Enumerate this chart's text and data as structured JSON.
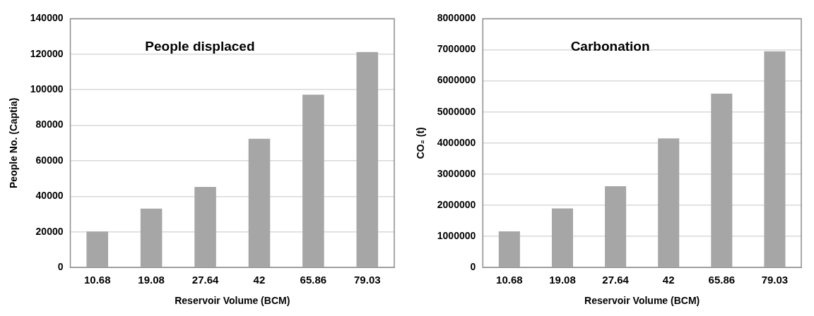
{
  "chart_data": [
    {
      "type": "bar",
      "title": "People displaced",
      "categories": [
        "10.68",
        "19.08",
        "27.64",
        "42",
        "65.86",
        "79.03"
      ],
      "values": [
        20200,
        33100,
        45300,
        72400,
        97200,
        121200
      ],
      "color": "#a6a6a6",
      "xlabel": "Reservoir Volume (BCM)",
      "ylabel": "People No. (Captia)",
      "ylim": [
        0,
        140000
      ],
      "yticks": [
        0,
        20000,
        40000,
        60000,
        80000,
        100000,
        120000,
        140000
      ],
      "grid": "y"
    },
    {
      "type": "bar",
      "title": "Carbonation",
      "categories": [
        "10.68",
        "19.08",
        "27.64",
        "42",
        "65.86",
        "79.03"
      ],
      "values": [
        1160000,
        1900000,
        2610000,
        4150000,
        5590000,
        6950000
      ],
      "color": "#a6a6a6",
      "xlabel": "Reservoir Volume (BCM)",
      "ylabel": "CO₂ (t)",
      "ylim": [
        0,
        8000000
      ],
      "yticks": [
        0,
        1000000,
        2000000,
        3000000,
        4000000,
        5000000,
        6000000,
        7000000,
        8000000
      ],
      "grid": "y"
    }
  ]
}
